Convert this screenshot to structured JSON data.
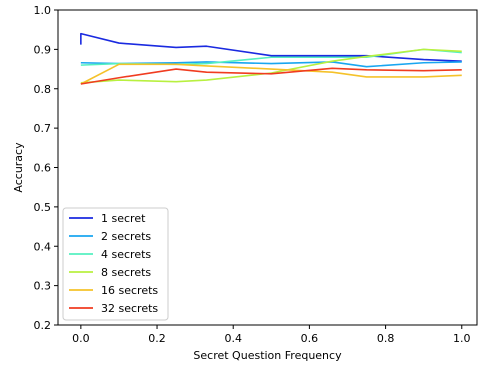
{
  "chart_data": {
    "type": "line",
    "title": "",
    "xlabel": "Secret Question Frequency",
    "ylabel": "Accuracy",
    "xlim": [
      -0.06,
      1.04
    ],
    "ylim": [
      0.2,
      1.0
    ],
    "xticks": [
      0.0,
      0.2,
      0.4,
      0.6,
      0.8,
      1.0
    ],
    "xtick_labels": [
      "0.0",
      "0.2",
      "0.4",
      "0.6",
      "0.8",
      "1.0"
    ],
    "yticks": [
      0.2,
      0.3,
      0.4,
      0.5,
      0.6,
      0.7,
      0.8,
      0.9,
      1.0
    ],
    "ytick_labels": [
      "0.2",
      "0.3",
      "0.4",
      "0.5",
      "0.6",
      "0.7",
      "0.8",
      "0.9",
      "1.0"
    ],
    "grid": false,
    "legend_position": "lower-left",
    "x": [
      0.0,
      0.1,
      0.25,
      0.33,
      0.5,
      0.66,
      0.75,
      0.9,
      1.0
    ],
    "series": [
      {
        "name": "1 secret",
        "color": "#1a2ae0",
        "points": [
          [
            0.0,
            0.912
          ],
          [
            0.0,
            0.94
          ],
          [
            0.1,
            0.916
          ],
          [
            0.25,
            0.905
          ],
          [
            0.33,
            0.908
          ],
          [
            0.5,
            0.884
          ],
          [
            0.66,
            0.884
          ],
          [
            0.75,
            0.884
          ],
          [
            0.9,
            0.874
          ],
          [
            1.0,
            0.87
          ]
        ]
      },
      {
        "name": "2 secrets",
        "color": "#19a6f0",
        "points": [
          [
            0.0,
            0.866
          ],
          [
            0.1,
            0.864
          ],
          [
            0.25,
            0.866
          ],
          [
            0.33,
            0.868
          ],
          [
            0.5,
            0.864
          ],
          [
            0.66,
            0.868
          ],
          [
            0.75,
            0.856
          ],
          [
            0.9,
            0.866
          ],
          [
            1.0,
            0.868
          ]
        ]
      },
      {
        "name": "4 secrets",
        "color": "#55f0c0",
        "points": [
          [
            0.0,
            0.86
          ],
          [
            0.1,
            0.864
          ],
          [
            0.25,
            0.862
          ],
          [
            0.33,
            0.864
          ],
          [
            0.5,
            0.88
          ],
          [
            0.66,
            0.88
          ],
          [
            0.75,
            0.88
          ],
          [
            0.9,
            0.9
          ],
          [
            1.0,
            0.892
          ]
        ]
      },
      {
        "name": "8 secrets",
        "color": "#b8f040",
        "points": [
          [
            0.0,
            0.815
          ],
          [
            0.1,
            0.822
          ],
          [
            0.25,
            0.818
          ],
          [
            0.33,
            0.822
          ],
          [
            0.5,
            0.84
          ],
          [
            0.66,
            0.87
          ],
          [
            0.75,
            0.882
          ],
          [
            0.9,
            0.9
          ],
          [
            1.0,
            0.895
          ]
        ]
      },
      {
        "name": "16 secrets",
        "color": "#f5c22a",
        "points": [
          [
            0.0,
            0.812
          ],
          [
            0.1,
            0.862
          ],
          [
            0.25,
            0.862
          ],
          [
            0.33,
            0.858
          ],
          [
            0.5,
            0.85
          ],
          [
            0.66,
            0.842
          ],
          [
            0.75,
            0.83
          ],
          [
            0.9,
            0.83
          ],
          [
            1.0,
            0.834
          ]
        ]
      },
      {
        "name": "32 secrets",
        "color": "#f03c20",
        "points": [
          [
            0.0,
            0.812
          ],
          [
            0.1,
            0.828
          ],
          [
            0.25,
            0.85
          ],
          [
            0.33,
            0.842
          ],
          [
            0.5,
            0.838
          ],
          [
            0.66,
            0.852
          ],
          [
            0.75,
            0.848
          ],
          [
            0.9,
            0.846
          ],
          [
            1.0,
            0.848
          ]
        ]
      }
    ]
  }
}
